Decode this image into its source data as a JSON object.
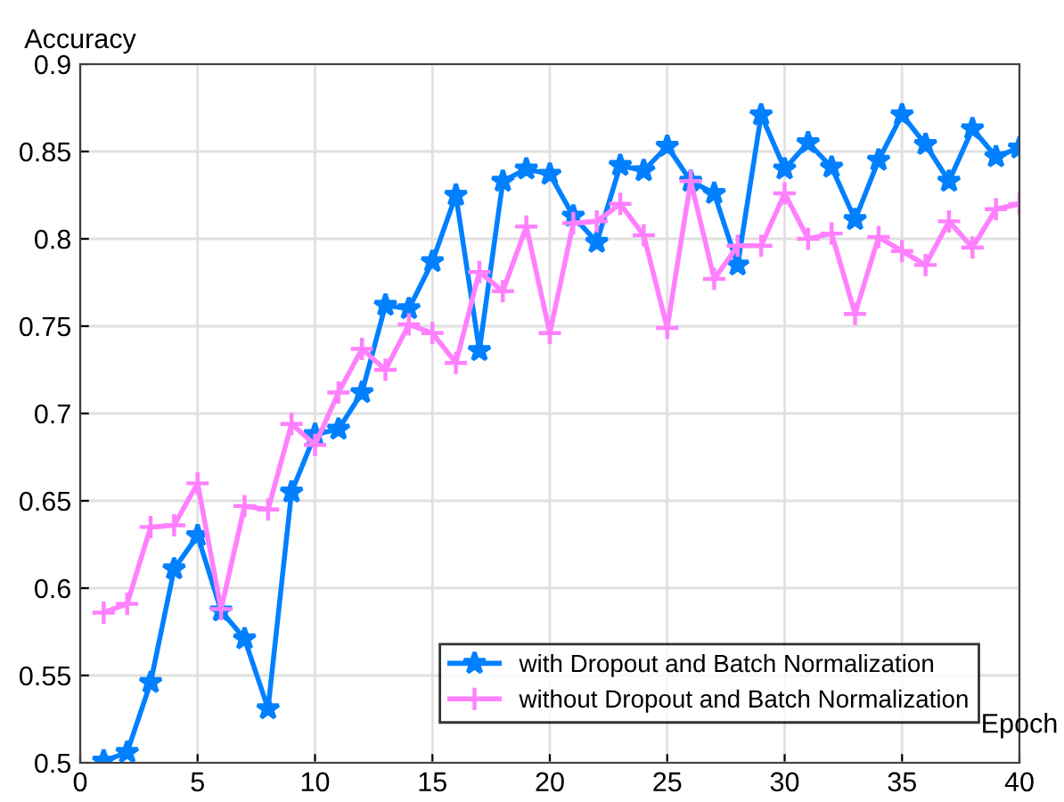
{
  "chart_data": {
    "type": "line",
    "xlabel": "Epoch",
    "ylabel": "Accuracy",
    "x": [
      1,
      2,
      3,
      4,
      5,
      6,
      7,
      8,
      9,
      10,
      11,
      12,
      13,
      14,
      15,
      16,
      17,
      18,
      19,
      20,
      21,
      22,
      23,
      24,
      25,
      26,
      27,
      28,
      29,
      30,
      31,
      32,
      33,
      34,
      35,
      36,
      37,
      38,
      39,
      40
    ],
    "series": [
      {
        "name": "with Dropout and Batch Normalization",
        "color": "#0080ff",
        "marker": "star",
        "values": [
          0.501,
          0.506,
          0.546,
          0.611,
          0.63,
          0.587,
          0.571,
          0.531,
          0.655,
          0.688,
          0.691,
          0.712,
          0.762,
          0.76,
          0.787,
          0.825,
          0.736,
          0.833,
          0.84,
          0.837,
          0.813,
          0.798,
          0.842,
          0.839,
          0.853,
          0.833,
          0.826,
          0.785,
          0.871,
          0.84,
          0.855,
          0.841,
          0.811,
          0.845,
          0.871,
          0.854,
          0.833,
          0.863,
          0.847,
          0.852
        ]
      },
      {
        "name": "without Dropout and Batch Normalization",
        "color": "#ff80ff",
        "marker": "cross",
        "values": [
          0.586,
          0.591,
          0.635,
          0.636,
          0.66,
          0.588,
          0.647,
          0.645,
          0.694,
          0.682,
          0.712,
          0.737,
          0.725,
          0.751,
          0.746,
          0.729,
          0.781,
          0.77,
          0.807,
          0.746,
          0.809,
          0.81,
          0.82,
          0.802,
          0.749,
          0.833,
          0.777,
          0.796,
          0.796,
          0.826,
          0.8,
          0.803,
          0.757,
          0.801,
          0.793,
          0.785,
          0.81,
          0.795,
          0.817,
          0.82
        ]
      }
    ],
    "xlim": [
      0,
      40
    ],
    "xticks": [
      0,
      5,
      10,
      15,
      20,
      25,
      30,
      35,
      40
    ],
    "ylim": [
      0.5,
      0.9
    ],
    "yticks": [
      0.5,
      0.55,
      0.6,
      0.65,
      0.7,
      0.75,
      0.8,
      0.85,
      0.9
    ],
    "grid": true,
    "legend": "bottom right",
    "line_style": "solid"
  }
}
